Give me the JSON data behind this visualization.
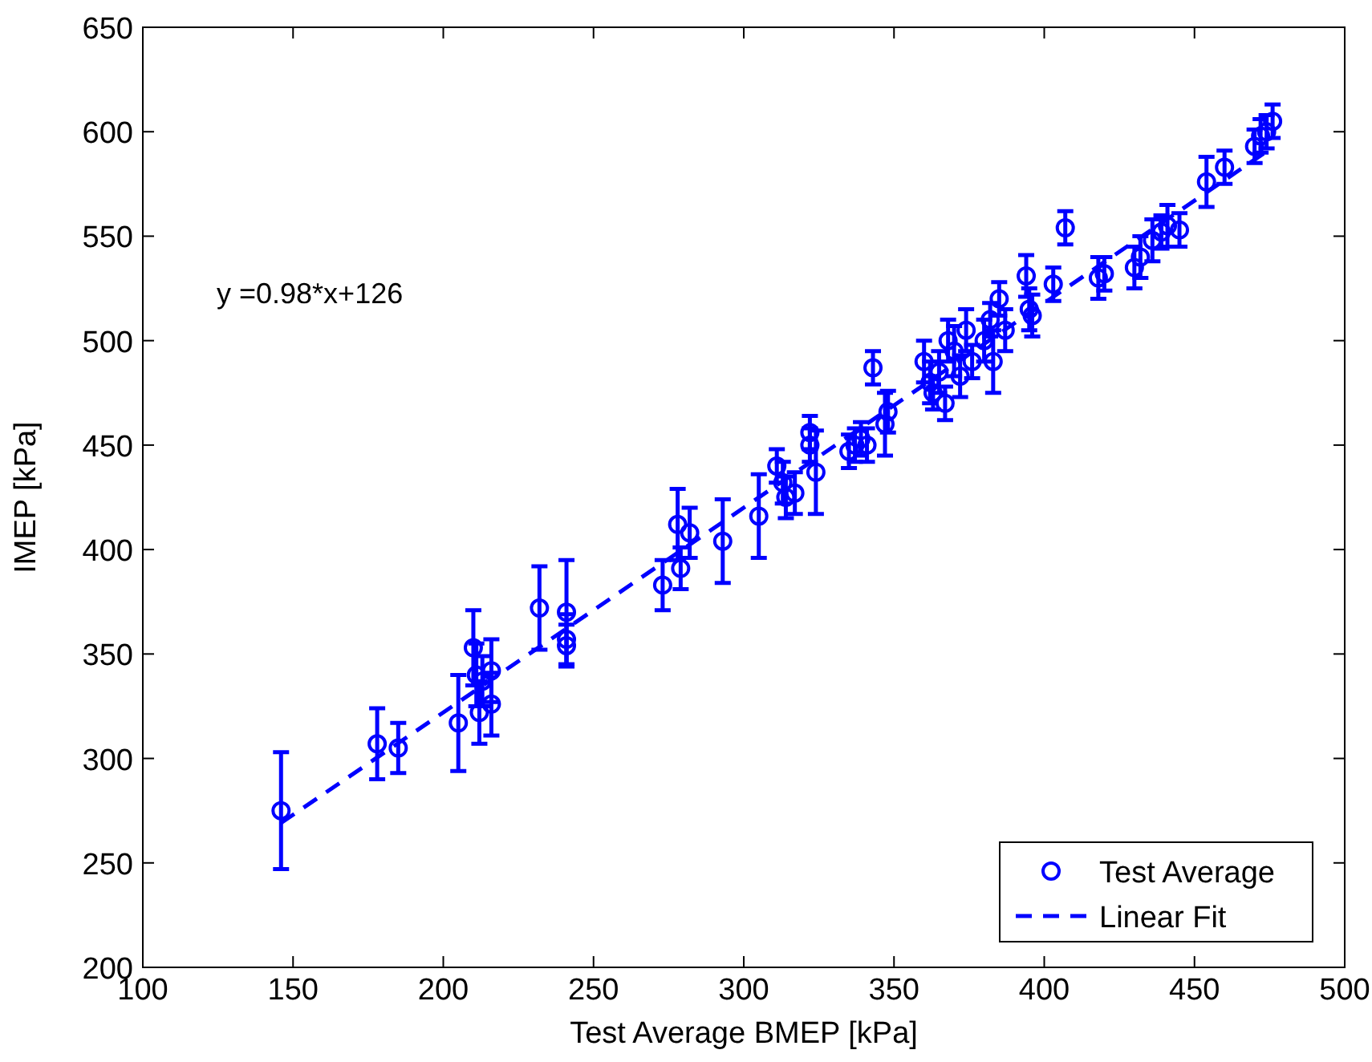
{
  "chart_data": {
    "type": "scatter",
    "xlabel": "Test Average BMEP [kPa]",
    "ylabel": "IMEP [kPa]",
    "xlim": [
      100,
      500
    ],
    "xticks": [
      100,
      150,
      200,
      250,
      300,
      350,
      400,
      450,
      500
    ],
    "ylim": [
      200,
      650
    ],
    "yticks": [
      200,
      250,
      300,
      350,
      400,
      450,
      500,
      550,
      600,
      650
    ],
    "grid": false,
    "legend": "bottom right",
    "marker": "circle",
    "annotations": [
      "y =0.98*x+126"
    ],
    "series": [
      {
        "name": "Test Average",
        "color": "#0000ff",
        "x": [
          146,
          178,
          185,
          205,
          210,
          211,
          212,
          213,
          216,
          216,
          232,
          241,
          241,
          241,
          273,
          278,
          279,
          282,
          293,
          305,
          311,
          313,
          314,
          317,
          322,
          322,
          324,
          335,
          337,
          339,
          341,
          343,
          347,
          348,
          360,
          362,
          363,
          365,
          367,
          368,
          370,
          372,
          374,
          376,
          380,
          382,
          383,
          385,
          387,
          394,
          395,
          396,
          403,
          407,
          418,
          420,
          430,
          432,
          436,
          439,
          441,
          445,
          454,
          460,
          470,
          472,
          474,
          476
        ],
        "values": [
          275,
          307,
          305,
          317,
          353,
          340,
          322,
          337,
          342,
          326,
          372,
          370,
          357,
          354,
          383,
          412,
          391,
          408,
          404,
          416,
          440,
          432,
          425,
          427,
          450,
          456,
          437,
          447,
          450,
          453,
          450,
          487,
          460,
          466,
          490,
          480,
          475,
          485,
          470,
          500,
          495,
          483,
          505,
          490,
          500,
          510,
          490,
          520,
          505,
          531,
          515,
          512,
          527,
          554,
          530,
          532,
          535,
          540,
          548,
          552,
          555,
          553,
          576,
          583,
          593,
          598,
          600,
          605
        ],
        "errors": [
          28,
          17,
          12,
          23,
          18,
          15,
          15,
          12,
          15,
          15,
          20,
          25,
          12,
          10,
          12,
          17,
          10,
          12,
          20,
          20,
          8,
          10,
          10,
          10,
          8,
          8,
          20,
          8,
          8,
          8,
          8,
          8,
          15,
          10,
          10,
          10,
          8,
          10,
          8,
          10,
          12,
          10,
          10,
          8,
          10,
          8,
          15,
          8,
          10,
          10,
          10,
          10,
          8,
          8,
          10,
          8,
          10,
          10,
          10,
          8,
          10,
          8,
          12,
          8,
          8,
          8,
          8,
          8
        ]
      },
      {
        "name": "Linear Fit",
        "type": "line",
        "color": "#0000ff",
        "line_style": "dashed",
        "marker": "none",
        "x": [
          146,
          476
        ],
        "values": [
          269.1,
          592.5
        ]
      }
    ]
  }
}
